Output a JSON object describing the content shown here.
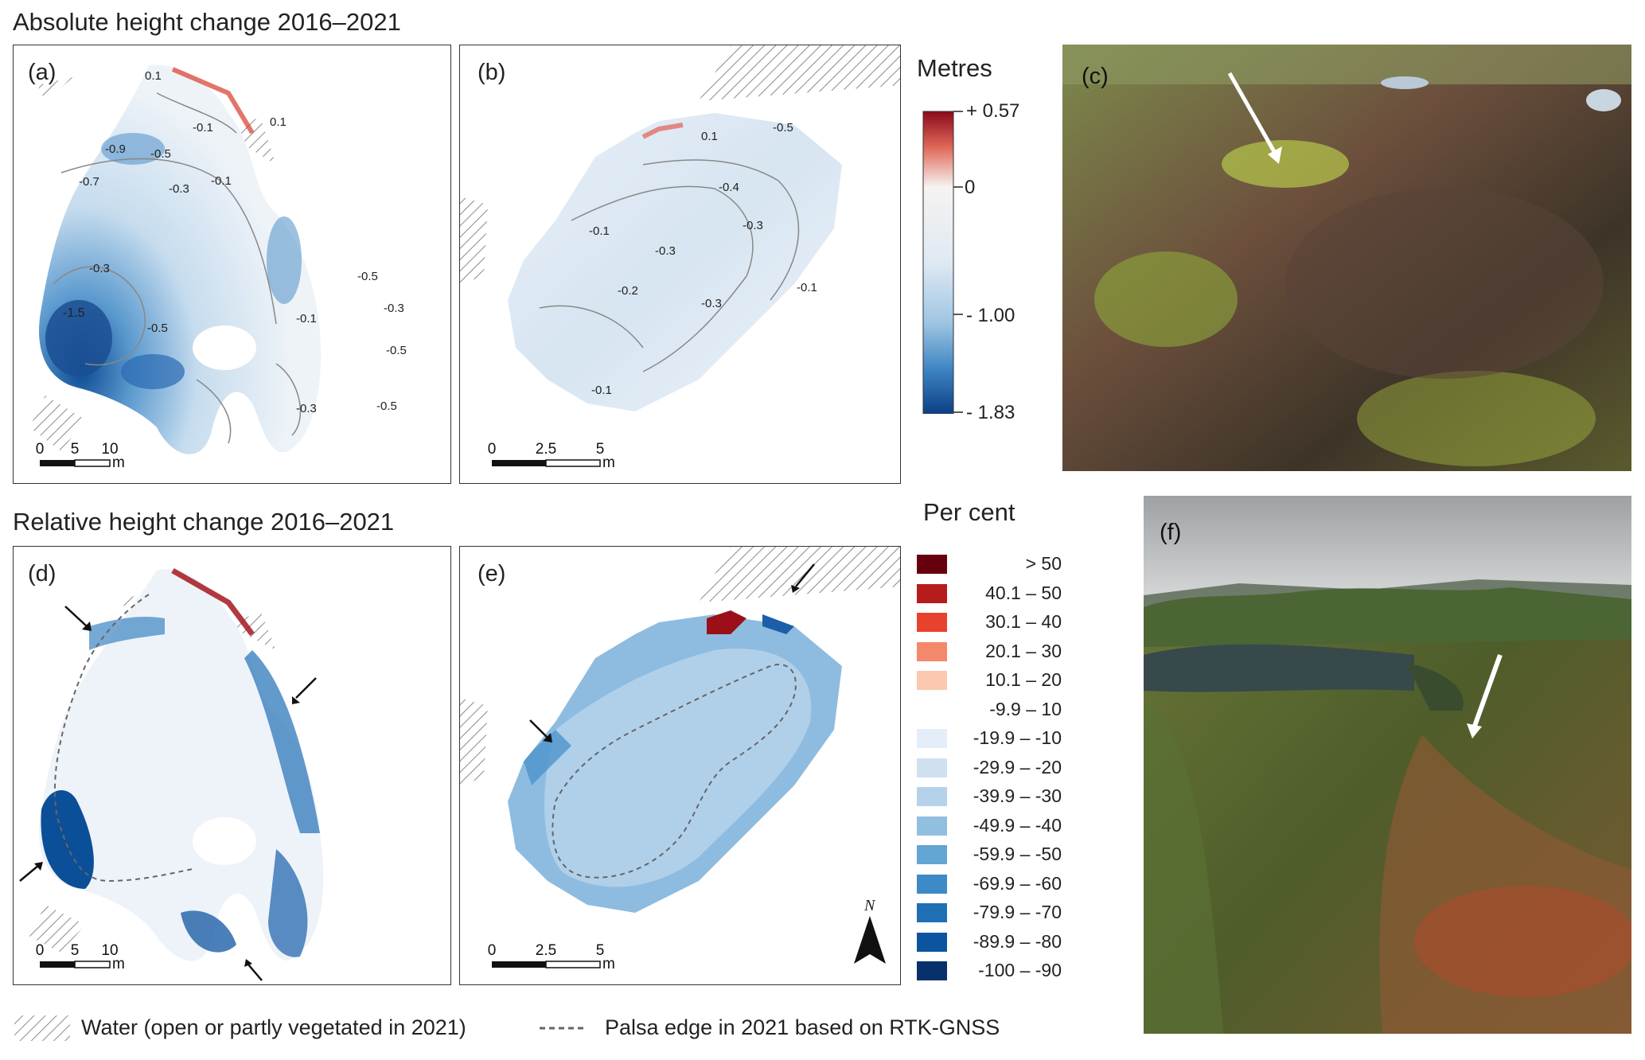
{
  "titles": {
    "absolute": "Absolute height change 2016–2021",
    "relative": "Relative height change 2016–2021"
  },
  "panels": {
    "a": "(a)",
    "b": "(b)",
    "c": "(c)",
    "d": "(d)",
    "e": "(e)",
    "f": "(f)"
  },
  "contours": {
    "a": [
      "0.1",
      "-0.1",
      "0.1",
      "-0.9",
      "-0.5",
      "-0.7",
      "-0.3",
      "-0.1",
      "-0.3",
      "-1.5",
      "-0.5",
      "-0.1",
      "-0.5",
      "-0.3",
      "-0.5",
      "-0.3",
      "-0.5"
    ],
    "b": [
      "0.1",
      "-0.5",
      "-0.4",
      "-0.1",
      "-0.3",
      "-0.3",
      "-0.2",
      "-0.3",
      "-0.1",
      "-0.1"
    ]
  },
  "scalebars": {
    "a": {
      "ticks": [
        "0",
        "5",
        "10"
      ],
      "unit": "m"
    },
    "b": {
      "ticks": [
        "0",
        "2.5",
        "5"
      ],
      "unit": "m"
    }
  },
  "legend_metres": {
    "title": "Metres",
    "ticks": [
      "+ 0.57",
      "0",
      "- 1.00",
      "- 1.83"
    ],
    "colors": {
      "top": "#8b0a1a",
      "mid": "#f6f3f1",
      "low": "#9fc5e2",
      "bottom": "#0c3f86"
    }
  },
  "legend_percent": {
    "title": "Per cent",
    "classes": [
      {
        "label": "> 50",
        "color": "#67000d"
      },
      {
        "label": "40.1 – 50",
        "color": "#b71c1c"
      },
      {
        "label": "30.1 – 40",
        "color": "#e8422f"
      },
      {
        "label": "20.1 – 30",
        "color": "#f4886a"
      },
      {
        "label": "10.1 – 20",
        "color": "#fbc8b0"
      },
      {
        "label": "-9.9 – 10",
        "color": "#ffffff"
      },
      {
        "label": "-19.9 – -10",
        "color": "#e4eef8"
      },
      {
        "label": "-29.9 – -20",
        "color": "#cfe0f1"
      },
      {
        "label": "-39.9 – -30",
        "color": "#b5d2ea"
      },
      {
        "label": "-49.9 – -40",
        "color": "#91bfe0"
      },
      {
        "label": "-59.9 – -50",
        "color": "#63a5d4"
      },
      {
        "label": "-69.9 – -60",
        "color": "#3d8bc6"
      },
      {
        "label": "-79.9 – -70",
        "color": "#1f6fb5"
      },
      {
        "label": "-89.9 – -80",
        "color": "#0b55a0"
      },
      {
        "label": "-100 – -90",
        "color": "#08306b"
      }
    ]
  },
  "north": "N",
  "footer": {
    "water": "Water (open or partly vegetated in 2021)",
    "edge": "Palsa edge in 2021 based on RTK-GNSS"
  }
}
